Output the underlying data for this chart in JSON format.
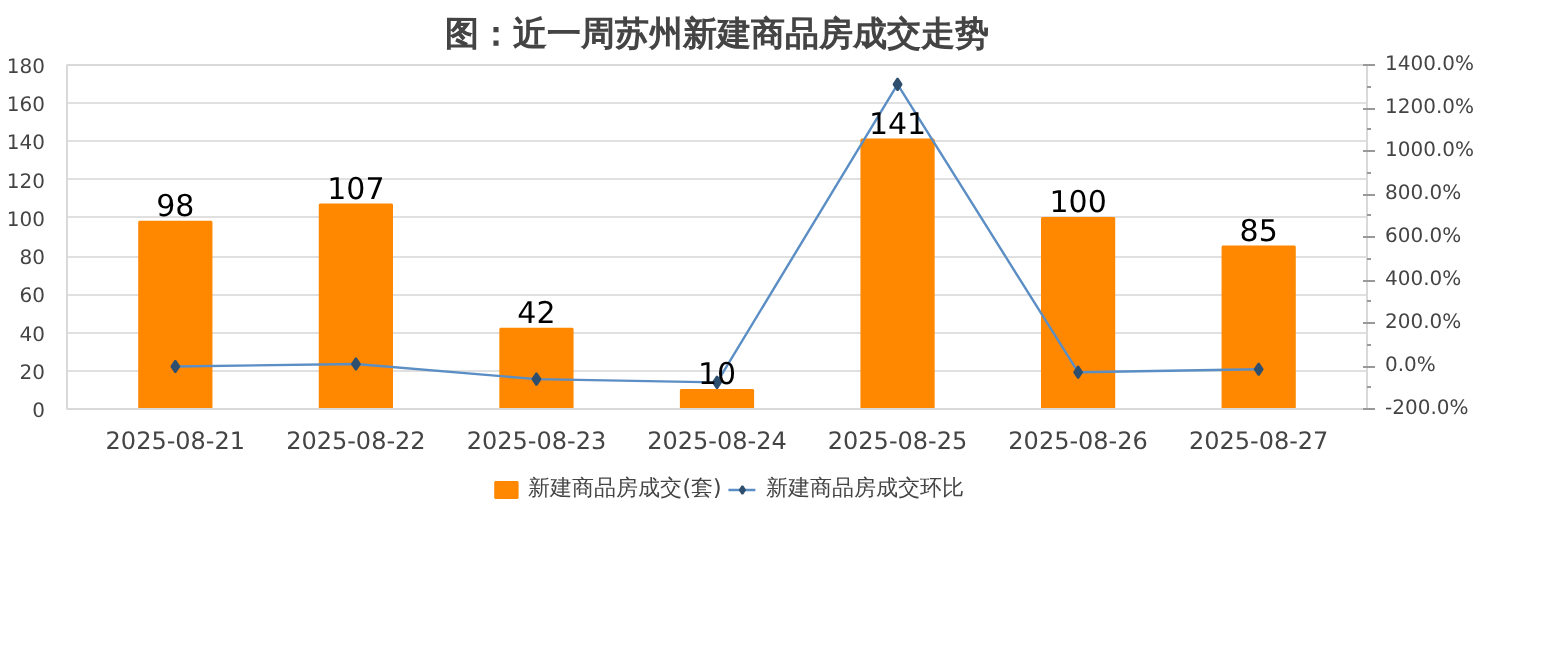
{
  "chart_data": {
    "type": "bar",
    "title": "图：近一周苏州新建商品房成交走势",
    "categories": [
      "2025-08-21",
      "2025-08-22",
      "2025-08-23",
      "2025-08-24",
      "2025-08-25",
      "2025-08-26",
      "2025-08-27"
    ],
    "series": [
      {
        "name": "新建商品房成交(套)",
        "color": "#ff8800",
        "values": [
          98,
          107,
          42,
          10,
          141,
          100,
          85
        ],
        "value_labels": [
          "98",
          "107",
          "42",
          "10",
          "141",
          "100",
          "85"
        ]
      },
      {
        "name": "新建商品房成交环比",
        "type": "line",
        "axis": "y2",
        "color": "#5b8ec4",
        "marker": "diamond",
        "values": [
          -2,
          9,
          -61,
          -76,
          1310,
          -29,
          -15
        ]
      }
    ],
    "ylim": [
      0,
      180
    ],
    "yticks": [
      0,
      20,
      40,
      60,
      80,
      100,
      120,
      140,
      160,
      180
    ],
    "y2lim": [
      -200,
      1400
    ],
    "y2ticks": [
      {
        "value": -200,
        "label": "-200.0%"
      },
      {
        "value": 0,
        "label": "0.0%"
      },
      {
        "value": 200,
        "label": "200.0%"
      },
      {
        "value": 400,
        "label": "400.0%"
      },
      {
        "value": 600,
        "label": "600.0%"
      },
      {
        "value": 800,
        "label": "800.0%"
      },
      {
        "value": 1000,
        "label": "1000.0%"
      },
      {
        "value": 1200,
        "label": "1200.0%"
      },
      {
        "value": 1400,
        "label": "1400.0%"
      }
    ],
    "grid": "y",
    "legend": "bottom"
  }
}
